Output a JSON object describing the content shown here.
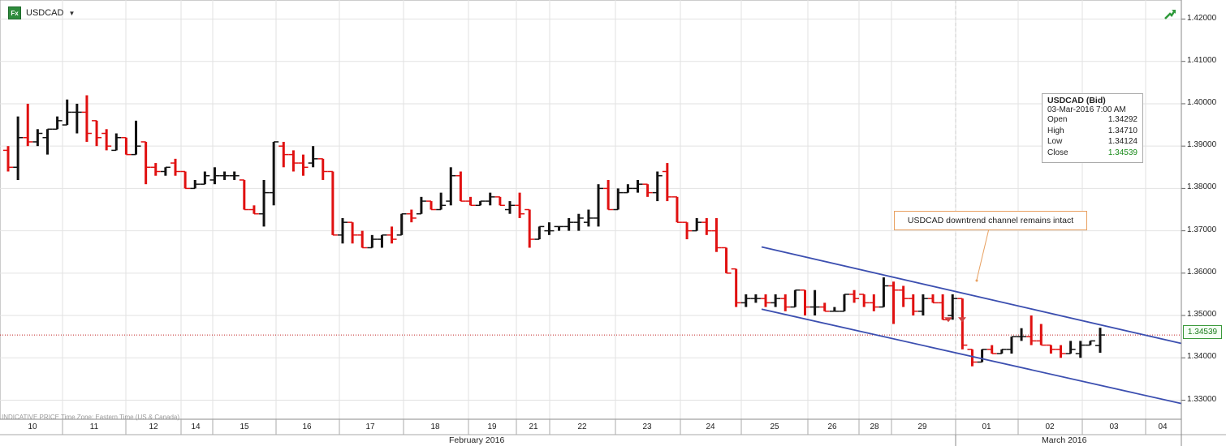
{
  "ticker": {
    "symbol": "USDCAD",
    "badge": "Fx",
    "dropdown_icon": "caret-down-icon",
    "trend_icon": "trend-up-icon"
  },
  "footer": {
    "info": "INDICATIVE PRICE   Time Zone: Eastern Time (US & Canada)"
  },
  "tooltip": {
    "title": "USDCAD (Bid)",
    "datetime": "03-Mar-2016 7:00 AM",
    "rows": [
      {
        "label": "Open",
        "value": "1.34292"
      },
      {
        "label": "High",
        "value": "1.34710"
      },
      {
        "label": "Low",
        "value": "1.34124"
      },
      {
        "label": "Close",
        "value": "1.34539"
      }
    ]
  },
  "annotation": {
    "text": "USDCAD downtrend channel remains intact"
  },
  "last_price": "1.34539",
  "colors": {
    "up": "#111111",
    "down": "#e01010",
    "channel": "#3c4fb0",
    "grid": "#e2e2e2",
    "last_line": "#c02020",
    "annotation_border": "#e8a060"
  },
  "chart_data": {
    "type": "ohlc",
    "symbol": "USDCAD",
    "y_ticks": [
      "1.42000",
      "1.41000",
      "1.40000",
      "1.39000",
      "1.38000",
      "1.37000",
      "1.36000",
      "1.35000",
      "1.34000",
      "1.33000"
    ],
    "ylim": [
      1.3255,
      1.4245
    ],
    "x_labels": [
      "10",
      "11",
      "12",
      "14",
      "15",
      "16",
      "17",
      "18",
      "19",
      "21",
      "22",
      "23",
      "24",
      "25",
      "26",
      "28",
      "29",
      "01",
      "02",
      "03",
      "04"
    ],
    "months": [
      "February 2016",
      "March 2016"
    ],
    "bars": [
      [
        1.389,
        1.39,
        1.384,
        1.385
      ],
      [
        1.385,
        1.397,
        1.382,
        1.392
      ],
      [
        1.392,
        1.4,
        1.39,
        1.391
      ],
      [
        1.391,
        1.394,
        1.39,
        1.393
      ],
      [
        1.392,
        1.394,
        1.388,
        1.394
      ],
      [
        1.394,
        1.397,
        1.394,
        1.396
      ],
      [
        1.395,
        1.401,
        1.395,
        1.398
      ],
      [
        1.398,
        1.4,
        1.393,
        1.398
      ],
      [
        1.398,
        1.402,
        1.391,
        1.393
      ],
      [
        1.396,
        1.396,
        1.39,
        1.392
      ],
      [
        1.393,
        1.394,
        1.389,
        1.39
      ],
      [
        1.389,
        1.393,
        1.389,
        1.392
      ],
      [
        1.392,
        1.392,
        1.388,
        1.388
      ],
      [
        1.388,
        1.396,
        1.388,
        1.39
      ],
      [
        1.391,
        1.391,
        1.381,
        1.385
      ],
      [
        1.385,
        1.386,
        1.383,
        1.384
      ],
      [
        1.384,
        1.385,
        1.383,
        1.385
      ],
      [
        1.386,
        1.387,
        1.383,
        1.384
      ],
      [
        1.384,
        1.384,
        1.38,
        1.38
      ],
      [
        1.38,
        1.382,
        1.38,
        1.381
      ],
      [
        1.381,
        1.384,
        1.381,
        1.383
      ],
      [
        1.382,
        1.385,
        1.381,
        1.383
      ],
      [
        1.383,
        1.384,
        1.382,
        1.383
      ],
      [
        1.383,
        1.384,
        1.382,
        1.383
      ],
      [
        1.382,
        1.382,
        1.375,
        1.375
      ],
      [
        1.375,
        1.376,
        1.374,
        1.374
      ],
      [
        1.374,
        1.382,
        1.371,
        1.379
      ],
      [
        1.379,
        1.391,
        1.376,
        1.391
      ],
      [
        1.39,
        1.391,
        1.385,
        1.388
      ],
      [
        1.388,
        1.389,
        1.384,
        1.386
      ],
      [
        1.386,
        1.388,
        1.383,
        1.385
      ],
      [
        1.386,
        1.39,
        1.385,
        1.387
      ],
      [
        1.387,
        1.387,
        1.382,
        1.384
      ],
      [
        1.384,
        1.384,
        1.369,
        1.369
      ],
      [
        1.369,
        1.373,
        1.367,
        1.372
      ],
      [
        1.372,
        1.372,
        1.367,
        1.369
      ],
      [
        1.369,
        1.37,
        1.366,
        1.366
      ],
      [
        1.366,
        1.369,
        1.366,
        1.368
      ],
      [
        1.368,
        1.369,
        1.366,
        1.369
      ],
      [
        1.369,
        1.371,
        1.367,
        1.368
      ],
      [
        1.369,
        1.374,
        1.369,
        1.374
      ],
      [
        1.374,
        1.375,
        1.372,
        1.373
      ],
      [
        1.374,
        1.378,
        1.374,
        1.377
      ],
      [
        1.377,
        1.377,
        1.375,
        1.375
      ],
      [
        1.375,
        1.379,
        1.375,
        1.376
      ],
      [
        1.377,
        1.385,
        1.376,
        1.383
      ],
      [
        1.383,
        1.384,
        1.377,
        1.377
      ],
      [
        1.377,
        1.378,
        1.376,
        1.376
      ],
      [
        1.376,
        1.377,
        1.376,
        1.377
      ],
      [
        1.377,
        1.379,
        1.376,
        1.378
      ],
      [
        1.378,
        1.378,
        1.376,
        1.376
      ],
      [
        1.375,
        1.377,
        1.374,
        1.376
      ],
      [
        1.376,
        1.379,
        1.373,
        1.374
      ],
      [
        1.375,
        1.375,
        1.366,
        1.368
      ],
      [
        1.368,
        1.371,
        1.368,
        1.371
      ],
      [
        1.37,
        1.372,
        1.369,
        1.37
      ],
      [
        1.371,
        1.371,
        1.37,
        1.371
      ],
      [
        1.371,
        1.373,
        1.37,
        1.372
      ],
      [
        1.372,
        1.374,
        1.37,
        1.373
      ],
      [
        1.372,
        1.375,
        1.371,
        1.373
      ],
      [
        1.373,
        1.381,
        1.371,
        1.38
      ],
      [
        1.38,
        1.382,
        1.375,
        1.375
      ],
      [
        1.375,
        1.38,
        1.375,
        1.379
      ],
      [
        1.379,
        1.381,
        1.379,
        1.38
      ],
      [
        1.38,
        1.382,
        1.379,
        1.381
      ],
      [
        1.381,
        1.381,
        1.378,
        1.379
      ],
      [
        1.379,
        1.384,
        1.377,
        1.383
      ],
      [
        1.384,
        1.386,
        1.377,
        1.378
      ],
      [
        1.378,
        1.378,
        1.372,
        1.372
      ],
      [
        1.372,
        1.372,
        1.368,
        1.37
      ],
      [
        1.37,
        1.373,
        1.37,
        1.372
      ],
      [
        1.372,
        1.373,
        1.369,
        1.37
      ],
      [
        1.37,
        1.373,
        1.365,
        1.366
      ],
      [
        1.366,
        1.366,
        1.36,
        1.36
      ],
      [
        1.361,
        1.361,
        1.352,
        1.353
      ],
      [
        1.353,
        1.355,
        1.352,
        1.354
      ],
      [
        1.354,
        1.355,
        1.353,
        1.354
      ],
      [
        1.354,
        1.355,
        1.352,
        1.353
      ],
      [
        1.353,
        1.355,
        1.352,
        1.354
      ],
      [
        1.354,
        1.355,
        1.351,
        1.352
      ],
      [
        1.352,
        1.356,
        1.352,
        1.356
      ],
      [
        1.356,
        1.356,
        1.35,
        1.352
      ],
      [
        1.352,
        1.356,
        1.35,
        1.352
      ],
      [
        1.352,
        1.353,
        1.351,
        1.351
      ],
      [
        1.351,
        1.352,
        1.351,
        1.351
      ],
      [
        1.351,
        1.355,
        1.351,
        1.355
      ],
      [
        1.355,
        1.356,
        1.353,
        1.354
      ],
      [
        1.355,
        1.355,
        1.352,
        1.353
      ],
      [
        1.353,
        1.355,
        1.351,
        1.352
      ],
      [
        1.352,
        1.359,
        1.352,
        1.357
      ],
      [
        1.357,
        1.358,
        1.348,
        1.356
      ],
      [
        1.356,
        1.357,
        1.352,
        1.354
      ],
      [
        1.354,
        1.355,
        1.35,
        1.351
      ],
      [
        1.351,
        1.355,
        1.35,
        1.354
      ],
      [
        1.354,
        1.355,
        1.353,
        1.353
      ],
      [
        1.353,
        1.355,
        1.349,
        1.349
      ],
      [
        1.35,
        1.355,
        1.349,
        1.354
      ],
      [
        1.354,
        1.354,
        1.342,
        1.343
      ],
      [
        1.342,
        1.342,
        1.338,
        1.339
      ],
      [
        1.339,
        1.342,
        1.339,
        1.342
      ],
      [
        1.342,
        1.343,
        1.341,
        1.341
      ],
      [
        1.341,
        1.342,
        1.341,
        1.342
      ],
      [
        1.342,
        1.345,
        1.341,
        1.345
      ],
      [
        1.345,
        1.347,
        1.344,
        1.345
      ],
      [
        1.345,
        1.35,
        1.343,
        1.344
      ],
      [
        1.344,
        1.348,
        1.343,
        1.343
      ],
      [
        1.343,
        1.343,
        1.341,
        1.342
      ],
      [
        1.342,
        1.343,
        1.34,
        1.341
      ],
      [
        1.341,
        1.344,
        1.341,
        1.342
      ],
      [
        1.341,
        1.344,
        1.34,
        1.343
      ],
      [
        1.343,
        1.344,
        1.343,
        1.344
      ],
      [
        1.3429,
        1.3471,
        1.3412,
        1.3454
      ]
    ],
    "markers": [
      1.349,
      1.349
    ],
    "channel": {
      "upper": [
        [
          "25",
          1.3662
        ],
        [
          "04",
          1.3434
        ]
      ],
      "lower": [
        [
          "25",
          1.3515
        ],
        [
          "04",
          1.3292
        ]
      ]
    },
    "last_value": 1.34539
  }
}
